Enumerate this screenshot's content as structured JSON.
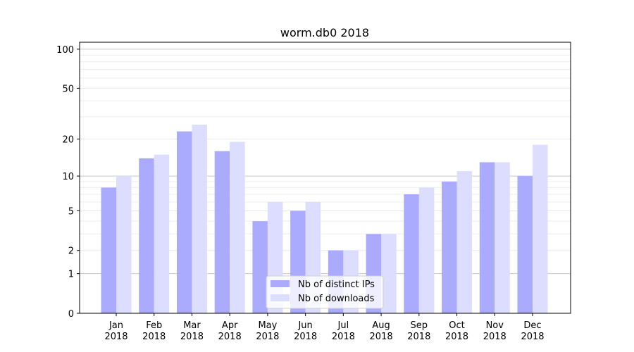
{
  "chart_data": {
    "type": "bar",
    "title": "worm.db0 2018",
    "xlabel": "",
    "ylabel": "",
    "yscale": "log(1+x)",
    "ylim": [
      0,
      113
    ],
    "yticks": [
      0,
      1,
      2,
      5,
      10,
      20,
      50,
      100
    ],
    "grid": true,
    "legend_placement": "lower-center",
    "categories": [
      "Jan\n2018",
      "Feb\n2018",
      "Mar\n2018",
      "Apr\n2018",
      "May\n2018",
      "Jun\n2018",
      "Jul\n2018",
      "Aug\n2018",
      "Sep\n2018",
      "Oct\n2018",
      "Nov\n2018",
      "Dec\n2018"
    ],
    "series": [
      {
        "name": "Nb of distinct IPs",
        "color": "#aaaaff",
        "values": [
          8,
          14,
          23,
          16,
          4,
          5,
          2,
          3,
          7,
          9,
          13,
          10
        ]
      },
      {
        "name": "Nb of downloads",
        "color": "#ddddff",
        "values": [
          10,
          15,
          26,
          19,
          6,
          6,
          2,
          3,
          8,
          11,
          13,
          18
        ]
      }
    ]
  }
}
